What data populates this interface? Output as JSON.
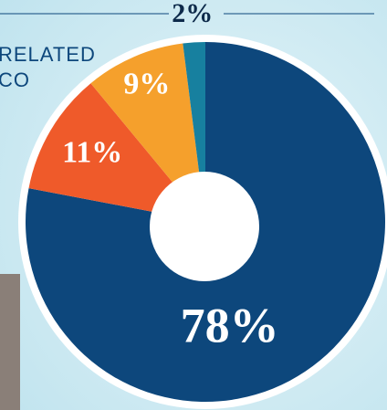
{
  "chart_data": {
    "type": "pie",
    "annotations": [
      "RELATED",
      "CO"
    ],
    "categories": [
      null,
      null,
      null,
      null
    ],
    "values": [
      78,
      11,
      9,
      2
    ],
    "value_labels": [
      "78%",
      "11%",
      "9%",
      "2%"
    ],
    "colors": [
      "#0d477c",
      "#ef5a2a",
      "#f5a02c",
      "#17809f"
    ]
  }
}
